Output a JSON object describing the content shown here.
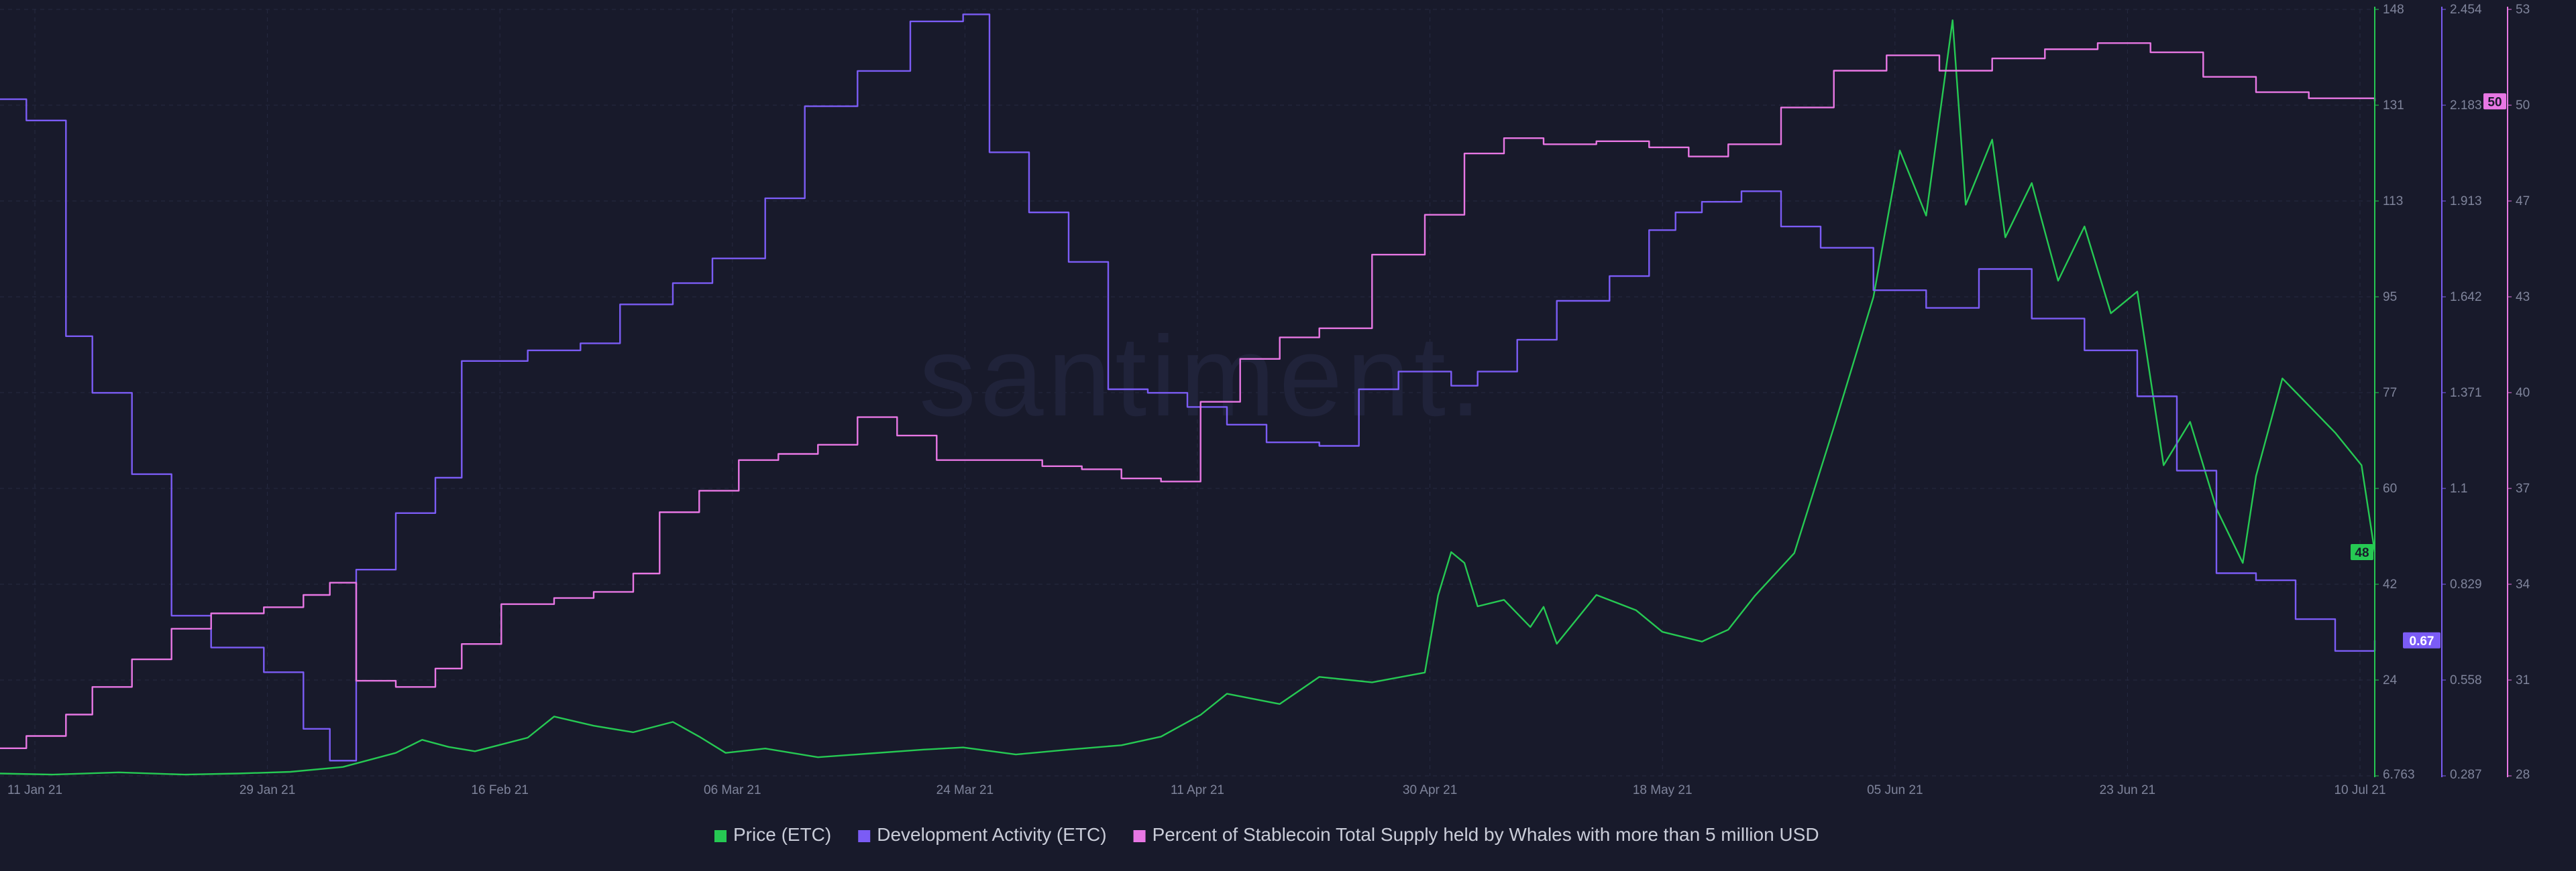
{
  "chart_data": {
    "type": "line",
    "title": "",
    "watermark": "santiment.",
    "x_ticks": [
      "11 Jan 21",
      "29 Jan 21",
      "16 Feb 21",
      "06 Mar 21",
      "24 Mar 21",
      "11 Apr 21",
      "30 Apr 21",
      "18 May 21",
      "05 Jun 21",
      "23 Jun 21",
      "10 Jul 21"
    ],
    "x_range": [
      "2021-01-11",
      "2021-07-10"
    ],
    "grid": true,
    "legend_position": "bottom-center",
    "axes": {
      "price": {
        "ticks": [
          "148",
          "131",
          "113",
          "95",
          "77",
          "60",
          "42",
          "24",
          "6.763"
        ],
        "range": [
          6.763,
          148
        ],
        "color": "#26c953",
        "current_label": "48",
        "current_value": 48
      },
      "dev": {
        "ticks": [
          "2.454",
          "2.183",
          "1.913",
          "1.642",
          "1.371",
          "1.1",
          "0.829",
          "0.558",
          "0.287"
        ],
        "range": [
          0.287,
          2.454
        ],
        "color": "#7b5cf5",
        "current_label": "0.67",
        "current_value": 0.67
      },
      "whale": {
        "ticks": [
          "53",
          "50",
          "47",
          "43",
          "40",
          "37",
          "34",
          "31",
          "28"
        ],
        "range": [
          28,
          53
        ],
        "color": "#e877e4",
        "current_label": "50",
        "current_value": 50
      }
    },
    "series": [
      {
        "name": "Price (ETC)",
        "axis": "price",
        "color": "#26c953",
        "points": [
          [
            "2021-01-11",
            7.2
          ],
          [
            "2021-01-15",
            7.0
          ],
          [
            "2021-01-20",
            7.4
          ],
          [
            "2021-01-25",
            7.0
          ],
          [
            "2021-01-29",
            7.2
          ],
          [
            "2021-02-02",
            7.5
          ],
          [
            "2021-02-06",
            8.4
          ],
          [
            "2021-02-10",
            11.0
          ],
          [
            "2021-02-12",
            13.4
          ],
          [
            "2021-02-14",
            12.1
          ],
          [
            "2021-02-16",
            11.3
          ],
          [
            "2021-02-20",
            13.8
          ],
          [
            "2021-02-22",
            17.7
          ],
          [
            "2021-02-25",
            16.0
          ],
          [
            "2021-02-28",
            14.8
          ],
          [
            "2021-03-03",
            16.7
          ],
          [
            "2021-03-05",
            14.0
          ],
          [
            "2021-03-07",
            11.0
          ],
          [
            "2021-03-10",
            11.8
          ],
          [
            "2021-03-14",
            10.2
          ],
          [
            "2021-03-18",
            10.9
          ],
          [
            "2021-03-22",
            11.6
          ],
          [
            "2021-03-25",
            12.0
          ],
          [
            "2021-03-29",
            10.7
          ],
          [
            "2021-04-02",
            11.6
          ],
          [
            "2021-04-06",
            12.4
          ],
          [
            "2021-04-09",
            14.0
          ],
          [
            "2021-04-12",
            18.0
          ],
          [
            "2021-04-14",
            21.9
          ],
          [
            "2021-04-18",
            20.0
          ],
          [
            "2021-04-21",
            25.0
          ],
          [
            "2021-04-25",
            24.0
          ],
          [
            "2021-04-29",
            25.8
          ],
          [
            "2021-04-30",
            40.0
          ],
          [
            "2021-05-01",
            48.0
          ],
          [
            "2021-05-02",
            46.0
          ],
          [
            "2021-05-03",
            38.0
          ],
          [
            "2021-05-05",
            39.2
          ],
          [
            "2021-05-07",
            34.2
          ],
          [
            "2021-05-08",
            37.9
          ],
          [
            "2021-05-09",
            31.1
          ],
          [
            "2021-05-12",
            40.1
          ],
          [
            "2021-05-15",
            37.3
          ],
          [
            "2021-05-17",
            33.3
          ],
          [
            "2021-05-20",
            31.5
          ],
          [
            "2021-05-22",
            33.7
          ],
          [
            "2021-05-24",
            39.9
          ],
          [
            "2021-05-27",
            47.8
          ],
          [
            "2021-05-30",
            71.0
          ],
          [
            "2021-06-02",
            95.0
          ],
          [
            "2021-06-04",
            122.0
          ],
          [
            "2021-06-06",
            110.0
          ],
          [
            "2021-06-08",
            146.0
          ],
          [
            "2021-06-09",
            112.0
          ],
          [
            "2021-06-11",
            124.0
          ],
          [
            "2021-06-12",
            106.0
          ],
          [
            "2021-06-14",
            116.0
          ],
          [
            "2021-06-16",
            98.0
          ],
          [
            "2021-06-18",
            108.0
          ],
          [
            "2021-06-20",
            92.0
          ],
          [
            "2021-06-22",
            96.0
          ],
          [
            "2021-06-24",
            64.0
          ],
          [
            "2021-06-26",
            72.0
          ],
          [
            "2021-06-28",
            56.0
          ],
          [
            "2021-06-30",
            46.0
          ],
          [
            "2021-07-01",
            62.0
          ],
          [
            "2021-07-03",
            80.0
          ],
          [
            "2021-07-05",
            75.0
          ],
          [
            "2021-07-07",
            70.0
          ],
          [
            "2021-07-09",
            64.0
          ],
          [
            "2021-07-10",
            48.0
          ]
        ]
      },
      {
        "name": "Development Activity (ETC)",
        "axis": "dev",
        "color": "#7b5cf5",
        "points": [
          [
            "2021-01-11",
            2.2
          ],
          [
            "2021-01-13",
            2.14
          ],
          [
            "2021-01-16",
            1.53
          ],
          [
            "2021-01-18",
            1.37
          ],
          [
            "2021-01-21",
            1.14
          ],
          [
            "2021-01-24",
            0.74
          ],
          [
            "2021-01-27",
            0.65
          ],
          [
            "2021-01-31",
            0.58
          ],
          [
            "2021-02-03",
            0.42
          ],
          [
            "2021-02-05",
            0.33
          ],
          [
            "2021-02-07",
            0.87
          ],
          [
            "2021-02-10",
            1.03
          ],
          [
            "2021-02-13",
            1.13
          ],
          [
            "2021-02-15",
            1.46
          ],
          [
            "2021-02-20",
            1.49
          ],
          [
            "2021-02-24",
            1.51
          ],
          [
            "2021-02-27",
            1.62
          ],
          [
            "2021-03-03",
            1.68
          ],
          [
            "2021-03-06",
            1.75
          ],
          [
            "2021-03-10",
            1.92
          ],
          [
            "2021-03-13",
            2.18
          ],
          [
            "2021-03-17",
            2.28
          ],
          [
            "2021-03-21",
            2.42
          ],
          [
            "2021-03-25",
            2.44
          ],
          [
            "2021-03-27",
            2.05
          ],
          [
            "2021-03-30",
            1.88
          ],
          [
            "2021-04-02",
            1.74
          ],
          [
            "2021-04-05",
            1.38
          ],
          [
            "2021-04-08",
            1.37
          ],
          [
            "2021-04-11",
            1.33
          ],
          [
            "2021-04-14",
            1.28
          ],
          [
            "2021-04-17",
            1.23
          ],
          [
            "2021-04-21",
            1.22
          ],
          [
            "2021-04-24",
            1.38
          ],
          [
            "2021-04-27",
            1.43
          ],
          [
            "2021-05-01",
            1.39
          ],
          [
            "2021-05-03",
            1.43
          ],
          [
            "2021-05-06",
            1.52
          ],
          [
            "2021-05-09",
            1.63
          ],
          [
            "2021-05-13",
            1.7
          ],
          [
            "2021-05-16",
            1.83
          ],
          [
            "2021-05-18",
            1.88
          ],
          [
            "2021-05-20",
            1.91
          ],
          [
            "2021-05-23",
            1.94
          ],
          [
            "2021-05-26",
            1.84
          ],
          [
            "2021-05-29",
            1.78
          ],
          [
            "2021-06-02",
            1.66
          ],
          [
            "2021-06-06",
            1.61
          ],
          [
            "2021-06-10",
            1.72
          ],
          [
            "2021-06-14",
            1.58
          ],
          [
            "2021-06-18",
            1.49
          ],
          [
            "2021-06-22",
            1.36
          ],
          [
            "2021-06-25",
            1.15
          ],
          [
            "2021-06-28",
            0.86
          ],
          [
            "2021-07-01",
            0.84
          ],
          [
            "2021-07-04",
            0.73
          ],
          [
            "2021-07-07",
            0.64
          ],
          [
            "2021-07-10",
            0.67
          ]
        ]
      },
      {
        "name": "Percent of Stablecoin Total Supply held by Whales with more than 5 million USD",
        "axis": "whale",
        "color": "#e877e4",
        "points": [
          [
            "2021-01-11",
            28.9
          ],
          [
            "2021-01-13",
            29.3
          ],
          [
            "2021-01-16",
            30.0
          ],
          [
            "2021-01-18",
            30.9
          ],
          [
            "2021-01-21",
            31.8
          ],
          [
            "2021-01-24",
            32.8
          ],
          [
            "2021-01-27",
            33.3
          ],
          [
            "2021-01-31",
            33.5
          ],
          [
            "2021-02-03",
            33.9
          ],
          [
            "2021-02-05",
            34.3
          ],
          [
            "2021-02-07",
            31.1
          ],
          [
            "2021-02-10",
            30.9
          ],
          [
            "2021-02-13",
            31.5
          ],
          [
            "2021-02-15",
            32.3
          ],
          [
            "2021-02-18",
            33.6
          ],
          [
            "2021-02-22",
            33.8
          ],
          [
            "2021-02-25",
            34.0
          ],
          [
            "2021-02-28",
            34.6
          ],
          [
            "2021-03-02",
            36.6
          ],
          [
            "2021-03-05",
            37.3
          ],
          [
            "2021-03-08",
            38.3
          ],
          [
            "2021-03-11",
            38.5
          ],
          [
            "2021-03-14",
            38.8
          ],
          [
            "2021-03-17",
            39.7
          ],
          [
            "2021-03-20",
            39.1
          ],
          [
            "2021-03-23",
            38.3
          ],
          [
            "2021-03-27",
            38.3
          ],
          [
            "2021-03-31",
            38.1
          ],
          [
            "2021-04-03",
            38.0
          ],
          [
            "2021-04-06",
            37.7
          ],
          [
            "2021-04-09",
            37.6
          ],
          [
            "2021-04-12",
            40.2
          ],
          [
            "2021-04-15",
            41.6
          ],
          [
            "2021-04-18",
            42.3
          ],
          [
            "2021-04-21",
            42.6
          ],
          [
            "2021-04-25",
            45.0
          ],
          [
            "2021-04-29",
            46.3
          ],
          [
            "2021-05-02",
            48.3
          ],
          [
            "2021-05-05",
            48.8
          ],
          [
            "2021-05-08",
            48.6
          ],
          [
            "2021-05-12",
            48.7
          ],
          [
            "2021-05-16",
            48.5
          ],
          [
            "2021-05-19",
            48.2
          ],
          [
            "2021-05-22",
            48.6
          ],
          [
            "2021-05-26",
            49.8
          ],
          [
            "2021-05-30",
            51.0
          ],
          [
            "2021-06-03",
            51.5
          ],
          [
            "2021-06-07",
            51.0
          ],
          [
            "2021-06-11",
            51.4
          ],
          [
            "2021-06-15",
            51.7
          ],
          [
            "2021-06-19",
            51.9
          ],
          [
            "2021-06-23",
            51.6
          ],
          [
            "2021-06-27",
            50.8
          ],
          [
            "2021-07-01",
            50.3
          ],
          [
            "2021-07-05",
            50.1
          ],
          [
            "2021-07-10",
            50.0
          ]
        ]
      }
    ]
  }
}
